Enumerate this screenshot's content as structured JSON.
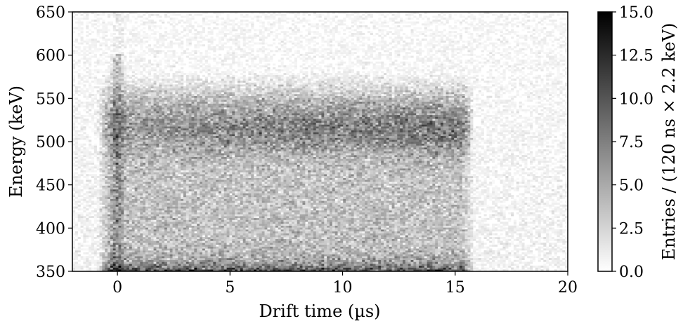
{
  "chart_data": {
    "type": "heatmap",
    "title": "",
    "xlabel": "Drift time (µs)",
    "ylabel": "Energy (keV)",
    "xlim": [
      -2,
      20
    ],
    "ylim": [
      350,
      650
    ],
    "x_ticks": [
      0,
      5,
      10,
      15,
      20
    ],
    "y_ticks": [
      350,
      400,
      450,
      500,
      550,
      600,
      650
    ],
    "colormap": "greys",
    "bin_width_x_us": 0.12,
    "bin_width_y_keV": 2.2,
    "colorbar": {
      "label": "Entries / (120 ns × 2.2 keV)",
      "range": [
        0.0,
        15.0
      ],
      "ticks": [
        "0.0",
        "2.5",
        "5.0",
        "7.5",
        "10.0",
        "12.5",
        "15.0"
      ]
    },
    "features": [
      {
        "region": "drift 0–15.7 µs, 350–575 keV",
        "description": "main band of events, density ~3–8 entries/bin"
      },
      {
        "region": "drift 0–15.5 µs, 350–360 keV",
        "description": "dense low-energy stripe, up to ~15 entries/bin"
      },
      {
        "region": "drift 5–15.5 µs, 480–560 keV",
        "description": "enhanced peak band, ~7–10 entries/bin"
      },
      {
        "region": "drift ≈ 0 µs, 350–600 keV",
        "description": "vertical stripe at drift time zero"
      },
      {
        "region": "outside 0–15.7 µs",
        "description": "sparse uniform background, ~0–2 entries/bin"
      }
    ]
  }
}
